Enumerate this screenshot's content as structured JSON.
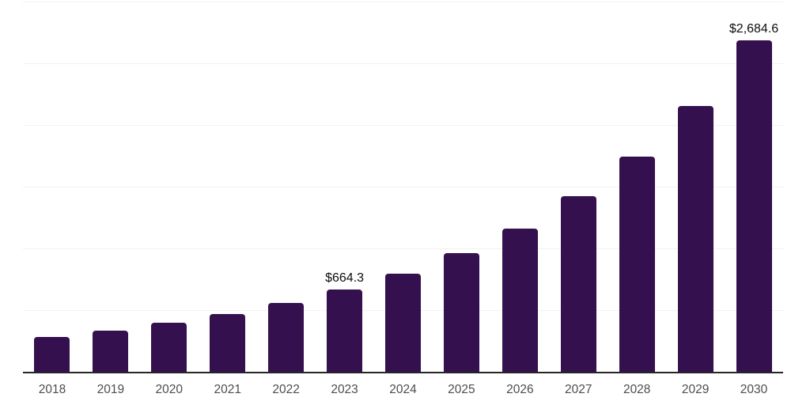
{
  "chart_data": {
    "type": "bar",
    "title": "",
    "xlabel": "",
    "ylabel": "",
    "categories": [
      "2018",
      "2019",
      "2020",
      "2021",
      "2022",
      "2023",
      "2024",
      "2025",
      "2026",
      "2027",
      "2028",
      "2029",
      "2030"
    ],
    "values": [
      282,
      331,
      395,
      469,
      559,
      664.3,
      794,
      961,
      1159,
      1422,
      1742,
      2152,
      2684.6
    ],
    "value_labels": {
      "2023": "$664.3",
      "2030": "$2,684.6"
    },
    "ylim": [
      0,
      3000
    ],
    "gridline_interval": 500,
    "gridline_count": 6,
    "grid": "horizontal-only",
    "legend": "none",
    "y_tick_labels_visible": false
  },
  "colors": {
    "bar": "#35104F",
    "background": "#FFFFFF",
    "gridline": "#F2F2F2",
    "axis_line": "#262626",
    "tick_label": "#4D4D4D",
    "data_label": "#0D0D0D"
  }
}
